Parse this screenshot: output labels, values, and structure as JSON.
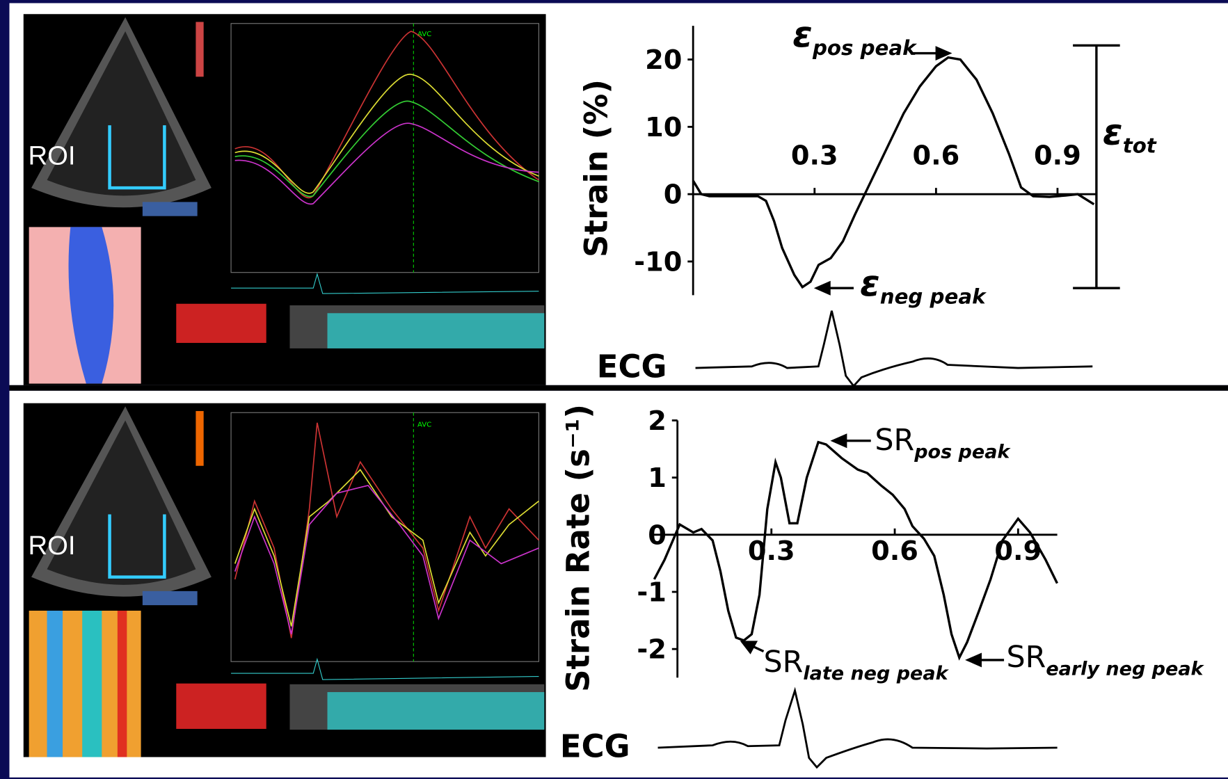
{
  "panels": [
    {
      "roi_label": "ROI",
      "marker_label": "AVC"
    },
    {
      "roi_label": "ROI",
      "marker_label": "AVC"
    }
  ],
  "chart_data": [
    {
      "type": "line",
      "y_label": "Strain (%)",
      "x": [
        0,
        0.02,
        0.04,
        0.08,
        0.16,
        0.18,
        0.2,
        0.22,
        0.25,
        0.27,
        0.29,
        0.31,
        0.34,
        0.37,
        0.4,
        0.44,
        0.48,
        0.52,
        0.56,
        0.6,
        0.63,
        0.66,
        0.7,
        0.74,
        0.78,
        0.81,
        0.84,
        0.88,
        0.92,
        0.95,
        0.99
      ],
      "series": [
        {
          "color": "#000000",
          "values": [
            2,
            0,
            -0.3,
            -0.3,
            -0.3,
            -1,
            -4,
            -8,
            -12,
            -13.8,
            -13,
            -10.5,
            -9.5,
            -7,
            -3,
            2,
            7,
            12,
            16,
            19,
            20.3,
            20,
            17,
            12,
            6,
            1,
            -0.3,
            -0.4,
            -0.2,
            0,
            -1.5
          ]
        }
      ],
      "xlim": [
        0,
        1
      ],
      "ylim": [
        -15,
        25
      ],
      "xticks": [
        0.3,
        0.6,
        0.9
      ],
      "yticks": [
        -10,
        0,
        10,
        20
      ],
      "annotations": [
        {
          "symbol": "ε",
          "subscript": "pos peak"
        },
        {
          "symbol": "ε",
          "subscript": "neg peak"
        },
        {
          "symbol": "ε",
          "subscript": "tot"
        }
      ],
      "ecg_label": "ECG"
    },
    {
      "type": "line",
      "y_label": "Strain Rate (s⁻¹)",
      "x": [
        0.015,
        0.04,
        0.077,
        0.11,
        0.13,
        0.157,
        0.176,
        0.195,
        0.214,
        0.233,
        0.252,
        0.271,
        0.29,
        0.31,
        0.323,
        0.344,
        0.363,
        0.386,
        0.414,
        0.433,
        0.471,
        0.51,
        0.533,
        0.567,
        0.595,
        0.624,
        0.643,
        0.671,
        0.696,
        0.719,
        0.738,
        0.757,
        0.776,
        0.805,
        0.833,
        0.862,
        0.9,
        0.929,
        0.967,
        0.995
      ],
      "series": [
        {
          "color": "#000000",
          "values": [
            -0.78,
            -0.44,
            0.18,
            0.04,
            0.1,
            -0.1,
            -0.64,
            -1.33,
            -1.8,
            -1.85,
            -1.74,
            -1.05,
            0.45,
            1.27,
            1.0,
            0.2,
            0.2,
            1.0,
            1.62,
            1.58,
            1.34,
            1.14,
            1.08,
            0.86,
            0.7,
            0.45,
            0.15,
            -0.07,
            -0.37,
            -1.05,
            -1.74,
            -2.15,
            -1.88,
            -1.33,
            -0.78,
            -0.1,
            0.28,
            0.04,
            -0.44,
            -0.85
          ]
        }
      ],
      "xlim": [
        0,
        1
      ],
      "ylim": [
        -2.5,
        2
      ],
      "xticks": [
        0.3,
        0.6,
        0.9
      ],
      "yticks": [
        -2,
        -1,
        0,
        1,
        2
      ],
      "annotations": [
        {
          "symbol": "SR",
          "subscript": "pos peak"
        },
        {
          "symbol": "SR",
          "subscript": "late neg peak"
        },
        {
          "symbol": "SR",
          "subscript": "early neg peak"
        }
      ],
      "ecg_label": "ECG"
    }
  ]
}
